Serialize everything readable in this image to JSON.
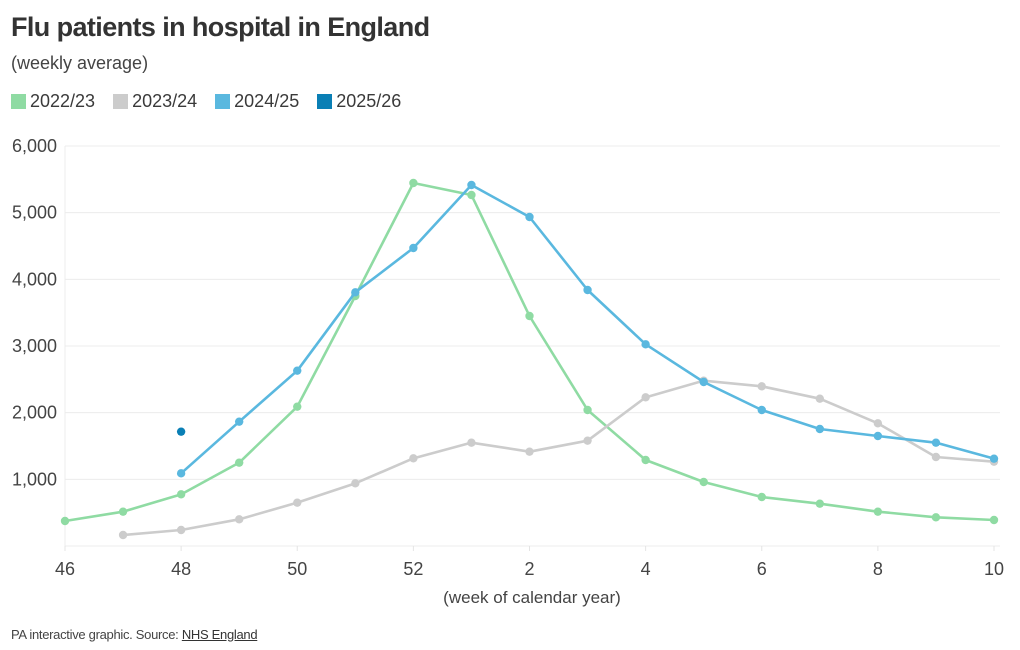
{
  "header": {
    "title": "Flu patients in hospital in England",
    "subtitle": "(weekly average)"
  },
  "legend": [
    {
      "label": "2022/23",
      "color": "#8fdba3"
    },
    {
      "label": "2023/24",
      "color": "#cccccc"
    },
    {
      "label": "2024/25",
      "color": "#5ab8df"
    },
    {
      "label": "2025/26",
      "color": "#0a7fb5"
    }
  ],
  "footer": {
    "text": "PA interactive graphic. Source: ",
    "link_label": "NHS England"
  },
  "chart_data": {
    "type": "line",
    "title": "Flu patients in hospital in England",
    "subtitle": "(weekly average)",
    "xlabel": "(week of calendar year)",
    "ylabel": "",
    "x": [
      "46",
      "47",
      "48",
      "49",
      "50",
      "51",
      "52",
      "1",
      "2",
      "3",
      "4",
      "5",
      "6",
      "7",
      "8",
      "9",
      "10"
    ],
    "x_tick_labels": [
      "46",
      "48",
      "50",
      "52",
      "2",
      "4",
      "6",
      "8",
      "10"
    ],
    "y_ticks": [
      1000,
      2000,
      3000,
      4000,
      5000,
      6000
    ],
    "y_tick_labels": [
      "1,000",
      "2,000",
      "3,000",
      "4,000",
      "5,000",
      "6,000"
    ],
    "ylim": [
      0,
      6000
    ],
    "grid": true,
    "legend_position": "top-left",
    "series": [
      {
        "name": "2022/23",
        "color": "#8fdba3",
        "values": [
          375,
          515,
          775,
          1250,
          2090,
          3750,
          5445,
          5265,
          3450,
          2040,
          1290,
          960,
          735,
          635,
          515,
          430,
          390
        ]
      },
      {
        "name": "2023/24",
        "color": "#cccccc",
        "values": [
          null,
          165,
          240,
          400,
          650,
          940,
          1315,
          1550,
          1415,
          1580,
          2230,
          2480,
          2395,
          2210,
          1840,
          1335,
          1265
        ]
      },
      {
        "name": "2024/25",
        "color": "#5ab8df",
        "values": [
          null,
          null,
          1090,
          1865,
          2630,
          3805,
          4470,
          5415,
          4935,
          3840,
          3025,
          2460,
          2040,
          1755,
          1650,
          1550,
          1310
        ]
      },
      {
        "name": "2025/26",
        "color": "#0a7fb5",
        "values": [
          null,
          null,
          1715,
          null,
          null,
          null,
          null,
          null,
          null,
          null,
          null,
          null,
          null,
          null,
          null,
          null,
          null
        ]
      }
    ]
  }
}
